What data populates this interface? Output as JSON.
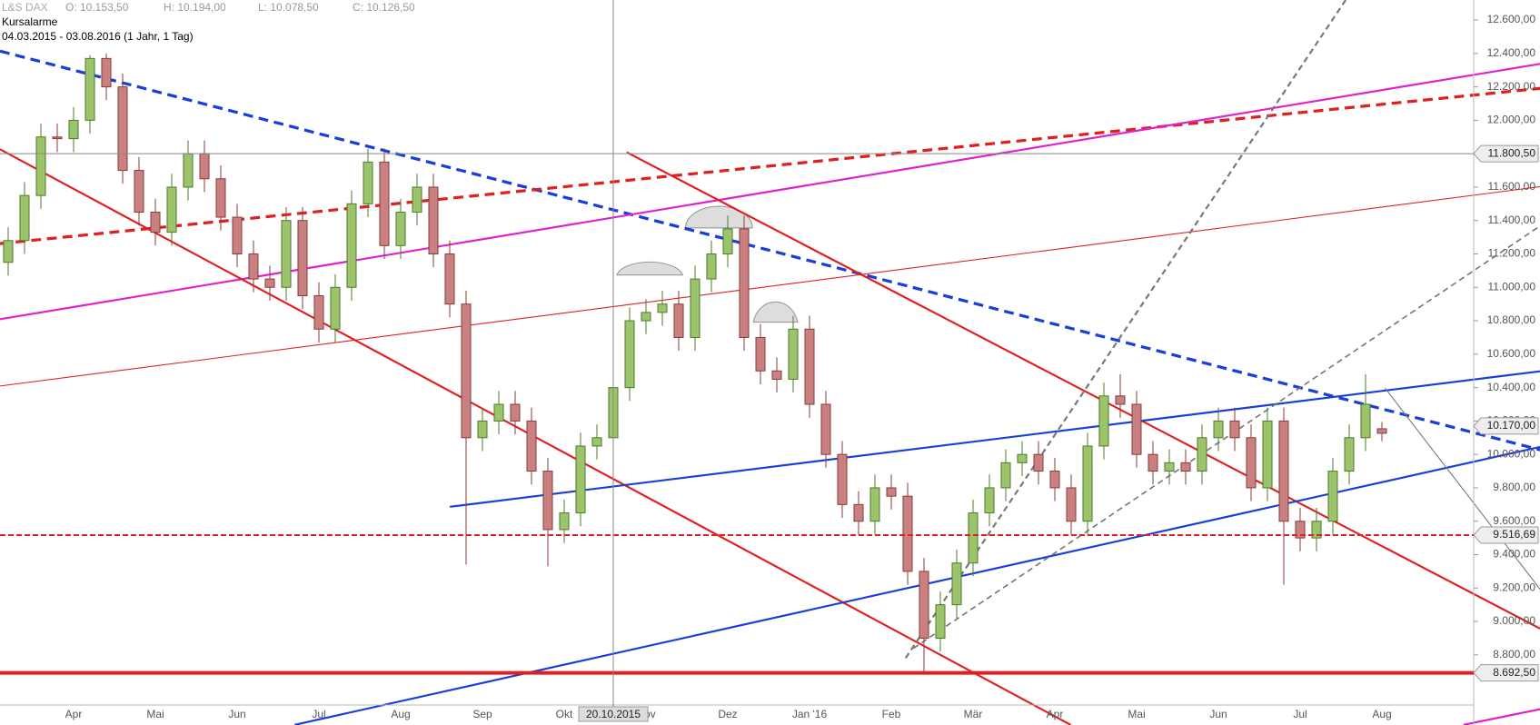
{
  "header": {
    "symbol": "L&S DAX",
    "ohlc": [
      "O: 10.153,50",
      "H: 10.194,00",
      "L: 10.078,50",
      "C: 10.126,50"
    ],
    "alarm": "Kursalarme",
    "range": "04.03.2015 - 03.08.2016 (1 Jahr, 1 Tag)"
  },
  "chart_data": {
    "type": "candlestick",
    "categories": [
      null,
      null,
      null,
      null,
      "Apr",
      null,
      null,
      null,
      null,
      "Mai",
      null,
      null,
      null,
      null,
      "Jun",
      null,
      null,
      null,
      null,
      "Jul",
      null,
      null,
      null,
      null,
      "Aug",
      null,
      null,
      null,
      null,
      "Sep",
      null,
      null,
      null,
      null,
      "Okt",
      null,
      null,
      null,
      null,
      "Nov",
      null,
      null,
      null,
      null,
      "Dez",
      null,
      null,
      null,
      null,
      "Jan '16",
      null,
      null,
      null,
      null,
      "Feb",
      null,
      null,
      null,
      null,
      "Mär",
      null,
      null,
      null,
      null,
      "Apr",
      null,
      null,
      null,
      null,
      "Mai",
      null,
      null,
      null,
      null,
      "Jun",
      null,
      null,
      null,
      null,
      "Jul",
      null,
      null,
      null,
      null,
      "Aug"
    ],
    "open": [
      11150,
      11280,
      11550,
      11900,
      11890,
      12000,
      12370,
      12200,
      11700,
      11450,
      11330,
      11600,
      11800,
      11650,
      11420,
      11200,
      11050,
      11000,
      11400,
      10950,
      10750,
      11000,
      11500,
      11750,
      11250,
      11450,
      11600,
      11200,
      10900,
      10100,
      10200,
      10300,
      10200,
      9900,
      9550,
      9650,
      10050,
      10100,
      10400,
      10800,
      10850,
      10900,
      10700,
      11050,
      11200,
      11350,
      10700,
      10500,
      10450,
      10750,
      10300,
      10000,
      9700,
      9600,
      9800,
      9750,
      9300,
      8900,
      9100,
      9350,
      9650,
      9800,
      9950,
      10000,
      9900,
      9800,
      9600,
      10050,
      10350,
      10300,
      10000,
      9900,
      9950,
      9900,
      10100,
      10200,
      10100,
      9800,
      10200,
      9600,
      9500,
      9600,
      9900,
      10100,
      10153.5
    ],
    "high": [
      11360,
      11630,
      11980,
      11980,
      12080,
      12390,
      12400,
      12280,
      11780,
      11530,
      11680,
      11880,
      11880,
      11730,
      11500,
      11280,
      11130,
      11480,
      11480,
      11030,
      11080,
      11580,
      11830,
      11830,
      11530,
      11680,
      11680,
      11280,
      10980,
      10280,
      10380,
      10380,
      10280,
      9980,
      9730,
      10130,
      10180,
      10480,
      10880,
      10930,
      10980,
      10980,
      11130,
      11280,
      11430,
      11430,
      10780,
      10580,
      10830,
      10830,
      10380,
      10080,
      9780,
      9880,
      9880,
      9830,
      9380,
      9180,
      9430,
      9730,
      9880,
      10030,
      10080,
      10080,
      9980,
      9880,
      10130,
      10430,
      10480,
      10380,
      10080,
      10030,
      10030,
      10180,
      10280,
      10280,
      10180,
      10280,
      10280,
      9680,
      9680,
      9980,
      10180,
      10480,
      10194
    ],
    "low": [
      11070,
      11200,
      11470,
      11810,
      11810,
      11920,
      12120,
      11620,
      11370,
      11250,
      11250,
      11520,
      11570,
      11340,
      11120,
      10970,
      10920,
      10920,
      10870,
      10670,
      10670,
      10920,
      11420,
      11170,
      11170,
      11370,
      11120,
      10820,
      9340,
      10020,
      10120,
      10120,
      9820,
      9330,
      9470,
      9570,
      9970,
      10020,
      10320,
      10720,
      10770,
      10620,
      10620,
      10970,
      11120,
      10620,
      10420,
      10370,
      10370,
      10220,
      9920,
      9620,
      9520,
      9520,
      9670,
      9220,
      8700,
      8820,
      9020,
      9270,
      9570,
      9720,
      9870,
      9820,
      9720,
      9520,
      9520,
      9970,
      10220,
      9920,
      9820,
      9820,
      9820,
      9820,
      10020,
      10020,
      9720,
      9720,
      9220,
      9420,
      9420,
      9520,
      9820,
      10020,
      10078.5
    ],
    "close": [
      11280,
      11550,
      11900,
      11890,
      12000,
      12370,
      12200,
      11700,
      11450,
      11330,
      11600,
      11800,
      11650,
      11420,
      11200,
      11050,
      11000,
      11400,
      10950,
      10750,
      11000,
      11500,
      11750,
      11250,
      11450,
      11600,
      11200,
      10900,
      10100,
      10200,
      10300,
      10200,
      9900,
      9550,
      9650,
      10050,
      10100,
      10400,
      10800,
      10850,
      10900,
      10700,
      11050,
      11200,
      11350,
      10700,
      10500,
      10450,
      10750,
      10300,
      10000,
      9700,
      9600,
      9800,
      9750,
      9300,
      8900,
      9100,
      9350,
      9650,
      9800,
      9950,
      10000,
      9900,
      9800,
      9600,
      10050,
      10350,
      10300,
      10000,
      9900,
      9950,
      9900,
      10100,
      10200,
      10100,
      9800,
      10200,
      9600,
      9500,
      9600,
      9900,
      10100,
      10300,
      10126.5
    ],
    "up_color": "#9cc46c",
    "down_color": "#c98080",
    "ylim": [
      8500,
      12720
    ],
    "yticks": [
      {
        "value": 8800,
        "label": "8.800,00"
      },
      {
        "value": 9000,
        "label": "9.000,00"
      },
      {
        "value": 9200,
        "label": "9.200,00"
      },
      {
        "value": 9400,
        "label": "9.400,00"
      },
      {
        "value": 9600,
        "label": "9.600,00"
      },
      {
        "value": 9800,
        "label": "9.800,00"
      },
      {
        "value": 10000,
        "label": "10.000,00"
      },
      {
        "value": 10200,
        "label": "10.200,00"
      },
      {
        "value": 10400,
        "label": "10.400,00"
      },
      {
        "value": 10600,
        "label": "10.600,00"
      },
      {
        "value": 10800,
        "label": "10.800,00"
      },
      {
        "value": 11000,
        "label": "11.000,00"
      },
      {
        "value": 11200,
        "label": "11.200,00"
      },
      {
        "value": 11400,
        "label": "11.400,00"
      },
      {
        "value": 11600,
        "label": "11.600,00"
      },
      {
        "value": 11800,
        "label": "11.800,00"
      },
      {
        "value": 12000,
        "label": "12.000,00"
      },
      {
        "value": 12200,
        "label": "12.200,00"
      },
      {
        "value": 12400,
        "label": "12.400,00"
      },
      {
        "value": 12600,
        "label": "12.600,00"
      }
    ],
    "levels": [
      {
        "value": 11800.5,
        "label": "11.800,50",
        "color": "#888888",
        "style": "solid"
      },
      {
        "value": 10170,
        "label": "10.170,00",
        "color": "#888888",
        "style": "none"
      },
      {
        "value": 9516.69,
        "label": "9.516,69",
        "color": "#e02020",
        "style": "dashed"
      },
      {
        "value": 8692.5,
        "label": "8.692,50",
        "color": "#e02020",
        "style": "thick"
      }
    ],
    "crosshair_label": "20.10.2015",
    "crosshair_index": 37
  }
}
